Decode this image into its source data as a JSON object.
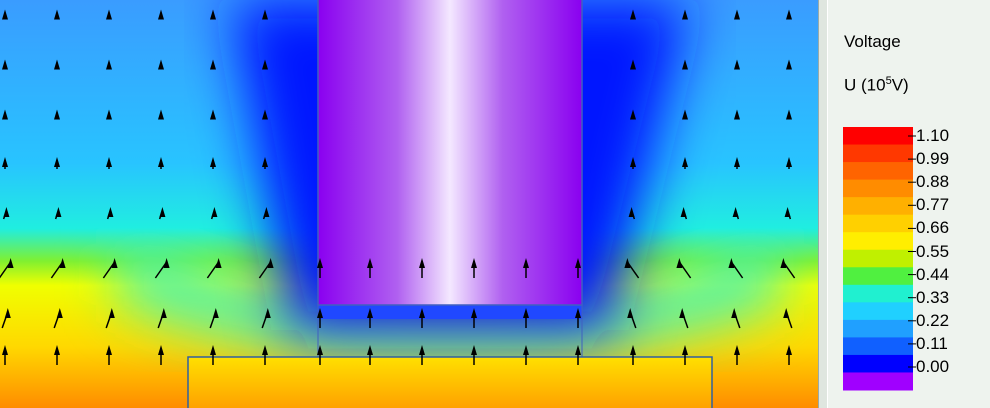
{
  "legend": {
    "title": "Voltage",
    "unit_prefix": "U (10",
    "unit_exponent": "5",
    "unit_suffix": "V)",
    "levels": [
      "1.10",
      "0.99",
      "0.88",
      "0.77",
      "0.66",
      "0.55",
      "0.44",
      "0.33",
      "0.22",
      "0.11",
      "0.00"
    ]
  }
}
